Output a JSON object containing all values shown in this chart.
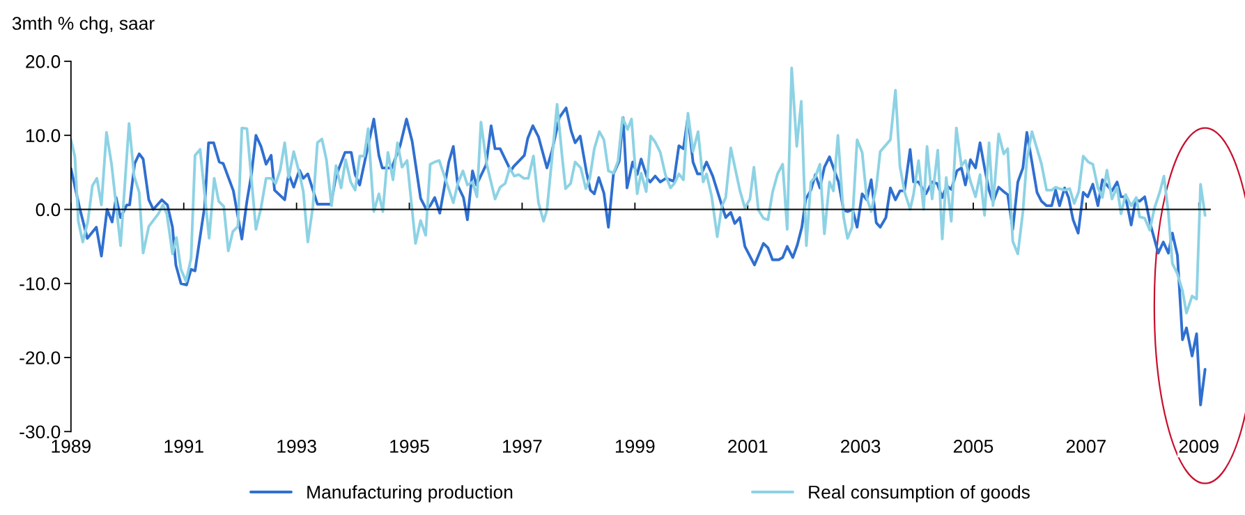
{
  "chart_data": {
    "type": "line",
    "ylabel": "3mth % chg, saar",
    "xlim": [
      1989,
      2009.2
    ],
    "xticks": [
      1989,
      1991,
      1993,
      1995,
      1997,
      1999,
      2001,
      2003,
      2005,
      2007,
      2009
    ],
    "ylim": [
      -30,
      20
    ],
    "yticks": [
      {
        "value": -30,
        "label": "-30.0"
      },
      {
        "value": -20,
        "label": "-20.0"
      },
      {
        "value": -10,
        "label": "-10.0"
      },
      {
        "value": 0,
        "label": "0.0"
      },
      {
        "value": 10,
        "label": "10.0"
      },
      {
        "value": 20,
        "label": "20.0"
      }
    ],
    "legend": "bottom",
    "line_style": "solid",
    "marker": "none",
    "series": [
      {
        "name": "Manufacturing production",
        "color": "#2f6fd0",
        "x": [
          1989.0,
          1989.15,
          1989.29,
          1989.45,
          1989.54,
          1989.64,
          1989.73,
          1989.8,
          1989.88,
          1989.99,
          1990.04,
          1990.13,
          1990.21,
          1990.28,
          1990.38,
          1990.46,
          1990.61,
          1990.71,
          1990.8,
          1990.86,
          1990.95,
          1991.05,
          1991.13,
          1991.2,
          1991.37,
          1991.44,
          1991.53,
          1991.63,
          1991.7,
          1991.88,
          1992.03,
          1992.12,
          1992.2,
          1992.28,
          1992.37,
          1992.46,
          1992.55,
          1992.61,
          1992.79,
          1992.86,
          1992.95,
          1993.05,
          1993.12,
          1993.2,
          1993.37,
          1993.61,
          1993.7,
          1993.86,
          1993.97,
          1994.04,
          1994.12,
          1994.37,
          1994.46,
          1994.52,
          1994.69,
          1994.84,
          1994.95,
          1995.05,
          1995.2,
          1995.3,
          1995.37,
          1995.45,
          1995.54,
          1995.7,
          1995.78,
          1995.86,
          1995.96,
          1996.03,
          1996.12,
          1996.19,
          1996.36,
          1996.45,
          1996.52,
          1996.61,
          1996.8,
          1996.85,
          1996.94,
          1997.04,
          1997.1,
          1997.19,
          1997.29,
          1997.44,
          1997.53,
          1997.66,
          1997.78,
          1997.87,
          1997.94,
          1998.03,
          1998.14,
          1998.21,
          1998.28,
          1998.36,
          1998.45,
          1998.53,
          1998.62,
          1998.72,
          1998.79,
          1998.86,
          1998.96,
          1999.04,
          1999.11,
          1999.22,
          1999.27,
          1999.36,
          1999.45,
          1999.55,
          1999.69,
          1999.78,
          1999.86,
          1999.94,
          2000.03,
          2000.11,
          2000.18,
          2000.27,
          2000.38,
          2000.51,
          2000.61,
          2000.7,
          2000.77,
          2000.86,
          2000.95,
          2001.12,
          2001.28,
          2001.36,
          2001.44,
          2001.55,
          2001.62,
          2001.7,
          2001.8,
          2001.88,
          2001.96,
          2002.03,
          2002.12,
          2002.2,
          2002.28,
          2002.36,
          2002.45,
          2002.61,
          2002.7,
          2002.77,
          2002.86,
          2002.94,
          2003.03,
          2003.11,
          2003.19,
          2003.28,
          2003.35,
          2003.45,
          2003.53,
          2003.62,
          2003.7,
          2003.78,
          2003.88,
          2003.94,
          2004.03,
          2004.16,
          2004.27,
          2004.36,
          2004.45,
          2004.53,
          2004.61,
          2004.71,
          2004.79,
          2004.86,
          2004.95,
          2005.04,
          2005.12,
          2005.2,
          2005.28,
          2005.35,
          2005.45,
          2005.54,
          2005.61,
          2005.7,
          2005.79,
          2005.88,
          2005.95,
          2006.04,
          2006.13,
          2006.21,
          2006.3,
          2006.39,
          2006.46,
          2006.53,
          2006.62,
          2006.69,
          2006.77,
          2006.86,
          2006.95,
          2007.03,
          2007.12,
          2007.21,
          2007.29,
          2007.38,
          2007.46,
          2007.55,
          2007.62,
          2007.7,
          2007.8,
          2007.88,
          2007.95,
          2008.04,
          2008.14,
          2008.28,
          2008.37,
          2008.46,
          2008.53,
          2008.62,
          2008.71,
          2008.78,
          2008.88,
          2008.96,
          2009.03,
          2009.11
        ],
        "values": [
          5.5,
          0.3,
          -3.9,
          -2.4,
          -6.3,
          0,
          -1.7,
          1.6,
          -1.1,
          0.6,
          0.6,
          6.2,
          7.5,
          6.8,
          1.3,
          0,
          1.3,
          0.6,
          -2.4,
          -7.5,
          -10.0,
          -10.2,
          -8.1,
          -8.3,
          0.4,
          9.0,
          9.0,
          6.4,
          6.2,
          2.5,
          -4.0,
          1.1,
          4.7,
          10.0,
          8.5,
          6.1,
          7.3,
          2.6,
          1.3,
          4.8,
          3.0,
          5.3,
          4.2,
          4.8,
          0.7,
          0.7,
          4.5,
          7.7,
          7.7,
          4.7,
          3.3,
          12.2,
          7.3,
          5.6,
          5.6,
          8.7,
          12.2,
          9.2,
          1.5,
          0,
          0.5,
          1.6,
          -0.5,
          6.4,
          8.5,
          3.2,
          1.6,
          -1.4,
          5.2,
          3.3,
          6.0,
          11.3,
          8.2,
          8.2,
          5.2,
          5.8,
          6.5,
          7.3,
          9.6,
          11.3,
          9.8,
          5.6,
          7.9,
          12.4,
          13.7,
          10.6,
          9.0,
          9.9,
          5.1,
          2.6,
          2.1,
          4.3,
          2.2,
          -2.4,
          4.8,
          6.5,
          12.4,
          2.9,
          6.4,
          4.7,
          6.8,
          4.2,
          3.7,
          4.5,
          3.7,
          4.2,
          3.8,
          8.6,
          8.2,
          12.5,
          6.4,
          4.8,
          4.8,
          6.4,
          4.5,
          1.3,
          -1.1,
          -0.4,
          -1.9,
          -1.1,
          -5.0,
          -7.5,
          -4.6,
          -5.2,
          -6.8,
          -6.8,
          -6.5,
          -5.0,
          -6.5,
          -4.8,
          -2.4,
          1.4,
          2.6,
          4.7,
          2.9,
          5.7,
          7.1,
          3.7,
          -0.1,
          -0.3,
          0,
          -2.4,
          2.1,
          1.3,
          4.0,
          -1.8,
          -2.4,
          -1.1,
          2.9,
          1.3,
          2.5,
          2.5,
          8.1,
          3.7,
          3.7,
          2.1,
          3.7,
          3.5,
          1.6,
          3.2,
          2.7,
          5.2,
          5.6,
          3.3,
          6.7,
          5.6,
          9.0,
          5.6,
          2.6,
          1.0,
          3.0,
          2.4,
          2.0,
          -2.7,
          3.7,
          5.6,
          10.4,
          6.4,
          2.3,
          1.1,
          0.5,
          0.5,
          2.6,
          0.5,
          2.9,
          1.6,
          -1.4,
          -3.2,
          2.3,
          1.7,
          3.4,
          0.5,
          4.0,
          3.2,
          2.5,
          3.7,
          1.7,
          1.7,
          -2.1,
          1.3,
          1.1,
          1.7,
          -2.0,
          -5.9,
          -4.4,
          -5.9,
          -3.2,
          -6.2,
          -17.6,
          -16.0,
          -19.8,
          -16.8,
          -26.4,
          -21.6
        ]
      },
      {
        "name": "Real consumption of goods",
        "color": "#8dd2e4",
        "x": [
          1989.0,
          1989.07,
          1989.13,
          1989.21,
          1989.3,
          1989.38,
          1989.46,
          1989.54,
          1989.63,
          1989.72,
          1989.88,
          1990.03,
          1990.12,
          1990.21,
          1990.28,
          1990.38,
          1990.46,
          1990.55,
          1990.63,
          1990.7,
          1990.8,
          1990.87,
          1990.95,
          1991.04,
          1991.13,
          1991.2,
          1991.29,
          1991.45,
          1991.54,
          1991.62,
          1991.71,
          1991.79,
          1991.87,
          1991.96,
          1992.03,
          1992.12,
          1992.28,
          1992.37,
          1992.46,
          1992.55,
          1992.63,
          1992.71,
          1992.79,
          1992.86,
          1992.95,
          1993.05,
          1993.12,
          1993.2,
          1993.29,
          1993.37,
          1993.45,
          1993.53,
          1993.62,
          1993.7,
          1993.79,
          1993.87,
          1993.96,
          1994.04,
          1994.12,
          1994.2,
          1994.27,
          1994.37,
          1994.46,
          1994.53,
          1994.62,
          1994.71,
          1994.79,
          1994.87,
          1994.96,
          1995.11,
          1995.2,
          1995.29,
          1995.37,
          1995.45,
          1995.53,
          1995.78,
          1995.86,
          1995.95,
          1996.03,
          1996.12,
          1996.2,
          1996.27,
          1996.37,
          1996.52,
          1996.61,
          1996.7,
          1996.78,
          1996.86,
          1996.94,
          1997.03,
          1997.11,
          1997.2,
          1997.29,
          1997.38,
          1997.44,
          1997.54,
          1997.62,
          1997.71,
          1997.77,
          1997.86,
          1997.94,
          1998.04,
          1998.13,
          1998.2,
          1998.28,
          1998.37,
          1998.45,
          1998.53,
          1998.62,
          1998.7,
          1998.78,
          1998.87,
          1998.94,
          1999.04,
          1999.11,
          1999.2,
          1999.28,
          1999.36,
          1999.45,
          1999.54,
          1999.63,
          1999.7,
          1999.78,
          1999.86,
          1999.94,
          2000.03,
          2000.12,
          2000.21,
          2000.27,
          2000.36,
          2000.46,
          2000.54,
          2000.61,
          2000.7,
          2000.86,
          2000.95,
          2001.04,
          2001.11,
          2001.19,
          2001.28,
          2001.36,
          2001.44,
          2001.53,
          2001.62,
          2001.7,
          2001.78,
          2001.87,
          2001.95,
          2002.04,
          2002.12,
          2002.2,
          2002.28,
          2002.36,
          2002.45,
          2002.52,
          2002.6,
          2002.7,
          2002.77,
          2002.85,
          2002.94,
          2003.03,
          2003.11,
          2003.19,
          2003.28,
          2003.35,
          2003.53,
          2003.62,
          2003.7,
          2003.78,
          2003.88,
          2003.94,
          2004.03,
          2004.12,
          2004.18,
          2004.27,
          2004.37,
          2004.45,
          2004.52,
          2004.61,
          2004.7,
          2004.79,
          2004.86,
          2004.95,
          2005.04,
          2005.12,
          2005.2,
          2005.28,
          2005.35,
          2005.45,
          2005.54,
          2005.61,
          2005.7,
          2005.79,
          2005.88,
          2005.95,
          2006.04,
          2006.13,
          2006.21,
          2006.3,
          2006.39,
          2006.46,
          2006.53,
          2006.62,
          2006.71,
          2006.79,
          2006.87,
          2006.95,
          2007.04,
          2007.12,
          2007.21,
          2007.29,
          2007.37,
          2007.46,
          2007.55,
          2007.62,
          2007.7,
          2007.8,
          2007.89,
          2007.95,
          2008.04,
          2008.13,
          2008.21,
          2008.31,
          2008.38,
          2008.46,
          2008.53,
          2008.62,
          2008.71,
          2008.78,
          2008.88,
          2008.96,
          2009.03,
          2009.11
        ],
        "values": [
          9.4,
          7.1,
          -1.6,
          -4.4,
          -1.6,
          3.2,
          4.2,
          0.6,
          10.4,
          6.1,
          -4.9,
          11.6,
          4.5,
          2.3,
          -5.9,
          -2.3,
          -1.5,
          -0.6,
          0.6,
          -0.6,
          -6.0,
          -3.8,
          -8.1,
          -9.7,
          -6.6,
          7.3,
          8.1,
          -3.9,
          4.2,
          1.1,
          0.4,
          -5.6,
          -3.0,
          -2.3,
          11.0,
          10.9,
          -2.7,
          0.2,
          4.2,
          4.2,
          3.5,
          5.3,
          9.0,
          4.3,
          7.8,
          4.9,
          2.4,
          -4.4,
          0.4,
          9.0,
          9.5,
          6.7,
          0.5,
          5.9,
          2.9,
          6.7,
          3.7,
          2.6,
          7.2,
          7.2,
          10.9,
          -0.3,
          2.1,
          -0.3,
          7.7,
          4.0,
          9.0,
          5.7,
          6.6,
          -4.6,
          -1.5,
          -3.5,
          6.1,
          6.4,
          6.6,
          0.9,
          3.5,
          5.2,
          3.3,
          3.7,
          1.7,
          11.8,
          6.2,
          1.4,
          3.0,
          3.5,
          5.6,
          4.5,
          4.7,
          4.2,
          4.2,
          7.2,
          0.9,
          -1.6,
          -0.1,
          7.7,
          14.2,
          7.1,
          2.8,
          3.5,
          6.4,
          5.6,
          2.8,
          4.2,
          8.2,
          10.5,
          9.4,
          5.2,
          4.9,
          6.5,
          12.4,
          10.8,
          12.2,
          2.1,
          4.9,
          2.4,
          9.9,
          9.1,
          7.7,
          4.7,
          2.9,
          3.5,
          4.8,
          4.0,
          13.0,
          7.8,
          10.5,
          3.7,
          4.8,
          1.8,
          -3.7,
          0.4,
          1.6,
          8.3,
          2.6,
          0.2,
          1.4,
          5.7,
          -0.1,
          -1.2,
          -1.4,
          2.3,
          4.8,
          6.1,
          -2.7,
          19.1,
          8.5,
          14.6,
          -4.9,
          3.7,
          4.4,
          6.1,
          -3.3,
          3.7,
          2.5,
          10.0,
          -1.0,
          -3.9,
          -2.4,
          9.4,
          7.7,
          1.6,
          -0.3,
          3.0,
          7.8,
          9.4,
          16.1,
          5.8,
          2.4,
          0,
          2.0,
          6.6,
          0,
          8.5,
          1.4,
          8.0,
          -4.0,
          4.3,
          -1.6,
          11.0,
          5.9,
          6.6,
          3.8,
          1.7,
          4.7,
          -0.8,
          9.0,
          0.5,
          10.2,
          7.5,
          8.2,
          -4.3,
          -6.0,
          -0.3,
          6.7,
          10.5,
          8.2,
          6.1,
          2.6,
          2.6,
          3.0,
          2.8,
          2.6,
          2.8,
          0.8,
          2.4,
          7.2,
          6.4,
          6.1,
          2.9,
          1.6,
          5.3,
          1.4,
          3.0,
          -0.6,
          2.0,
          0.5,
          1.6,
          -1.0,
          -1.2,
          -2.8,
          0.1,
          2.4,
          4.5,
          -0.5,
          -7.3,
          -8.7,
          -11.0,
          -14.0,
          -11.7,
          -12.1,
          3.4,
          -0.8
        ]
      }
    ]
  }
}
